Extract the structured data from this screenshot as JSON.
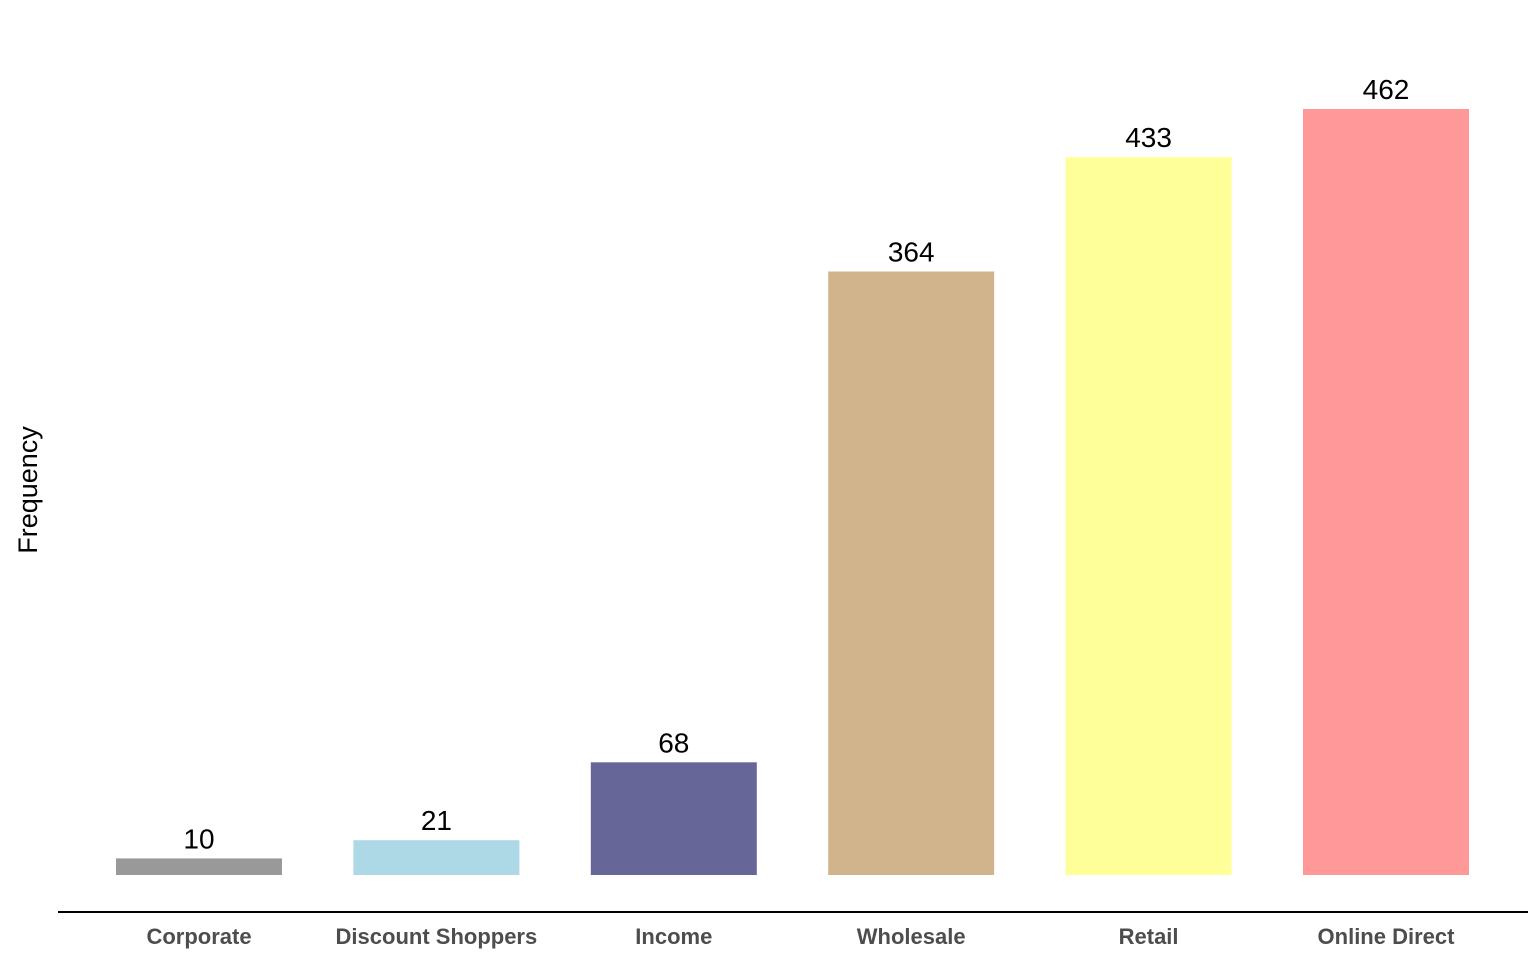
{
  "chart_data": {
    "type": "bar",
    "title": "",
    "xlabel": "",
    "ylabel": "Frequency",
    "categories": [
      "Corporate",
      "Discount Shoppers",
      "Income",
      "Wholesale",
      "Retail",
      "Online Direct"
    ],
    "values": [
      10,
      21,
      68,
      364,
      433,
      462
    ],
    "colors": [
      "#999999",
      "#add8e6",
      "#666699",
      "#d2b48c",
      "#ffff99",
      "#ff9999"
    ],
    "ylim": [
      0,
      462
    ],
    "grid": false,
    "legend": "none"
  }
}
